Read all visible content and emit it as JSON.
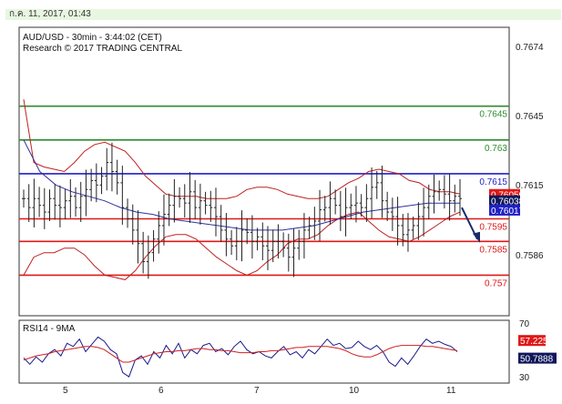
{
  "header": {
    "date": "ก.ค. 11, 2017, 01:43"
  },
  "main_panel": {
    "title": "AUD/USD - 30min - 3:44:02 (CET)",
    "subtitle": "Research © 2017 TRADING CENTRAL",
    "axis_labels": [
      "0.7674",
      "0.7645",
      "0.7615",
      "0.7586"
    ]
  },
  "rsi_panel": {
    "title": "RSI14 - 9MA",
    "axis_labels": [
      "70",
      "30"
    ],
    "rsi_badge": "57.225",
    "ma_badge": "50.7888"
  },
  "x_axis": {
    "labels": [
      "5",
      "6",
      "7",
      "10",
      "11"
    ]
  },
  "colors": {
    "green_level": "#2e8b2e",
    "red_level": "#e01818",
    "blue_level": "#2020c8",
    "bollinger": "#c02020",
    "moving_average": "#3030a0",
    "price": "#222222",
    "rsi_line": "#1a1a8c",
    "rsi_ma": "#d02020",
    "badge_red": "#e01818",
    "badge_navy": "#10185a"
  },
  "chart_data": [
    {
      "type": "candlestick",
      "title": "AUD/USD - 30min - 3:44:02 (CET)",
      "ylim": [
        0.7552,
        0.768
      ],
      "y_ticks": [
        0.7674,
        0.7645,
        0.7615,
        0.7586
      ],
      "x_labels": [
        "5",
        "6",
        "7",
        "10",
        "11"
      ],
      "levels": [
        {
          "label": "0.7645",
          "value": 0.7645,
          "color": "green"
        },
        {
          "label": "0.763",
          "value": 0.763,
          "color": "green"
        },
        {
          "label": "0.7615",
          "value": 0.7615,
          "color": "blue"
        },
        {
          "label": "0.7595",
          "value": 0.7595,
          "color": "red"
        },
        {
          "label": "0.7585",
          "value": 0.7585,
          "color": "red"
        },
        {
          "label": "0.757",
          "value": 0.757,
          "color": "red"
        }
      ],
      "price_badges": [
        {
          "label": "0.76050",
          "value": 0.7605,
          "color": "red"
        },
        {
          "label": "0.76038",
          "value": 0.76038,
          "color": "navy"
        },
        {
          "label": "0.76017",
          "value": 0.76017,
          "color": "blue"
        }
      ],
      "close": [
        0.7604,
        0.76,
        0.7604,
        0.7601,
        0.7598,
        0.7604,
        0.7601,
        0.76,
        0.7603,
        0.7605,
        0.76,
        0.7605,
        0.7608,
        0.7612,
        0.761,
        0.7614,
        0.762,
        0.7616,
        0.7611,
        0.76,
        0.7595,
        0.759,
        0.7584,
        0.7576,
        0.758,
        0.7586,
        0.7592,
        0.7597,
        0.7601,
        0.7605,
        0.7604,
        0.7602,
        0.7607,
        0.76,
        0.7603,
        0.7601,
        0.76,
        0.7596,
        0.759,
        0.7586,
        0.7583,
        0.7585,
        0.759,
        0.7589,
        0.7585,
        0.7587,
        0.7583,
        0.7581,
        0.7585,
        0.7585,
        0.7582,
        0.7578,
        0.7582,
        0.7585,
        0.759,
        0.7592,
        0.7594,
        0.7599,
        0.76,
        0.7604,
        0.7601,
        0.7596,
        0.76,
        0.7601,
        0.7602,
        0.76,
        0.7604,
        0.7609,
        0.7611,
        0.7603,
        0.7598,
        0.7596,
        0.7592,
        0.7588,
        0.759,
        0.7592,
        0.7596,
        0.76,
        0.7605,
        0.7607,
        0.7608,
        0.7606,
        0.7603,
        0.7605,
        0.7604
      ],
      "bollinger": {
        "upper": [
          0.7648,
          0.762,
          0.7618,
          0.7617,
          0.7616,
          0.762,
          0.7625,
          0.7628,
          0.7629,
          0.7627,
          0.7625,
          0.762,
          0.7614,
          0.761,
          0.7606,
          0.7605,
          0.7605,
          0.7605,
          0.7604,
          0.7604,
          0.7604,
          0.7605,
          0.7608,
          0.7609,
          0.7609,
          0.7608,
          0.7606,
          0.7605,
          0.7604,
          0.7604,
          0.7605,
          0.7608,
          0.7611,
          0.7613,
          0.7616,
          0.7617,
          0.7616,
          0.7615,
          0.7612,
          0.7611,
          0.7608,
          0.7607,
          0.7607,
          0.7606
        ],
        "lower": [
          0.757,
          0.7578,
          0.758,
          0.758,
          0.7582,
          0.7582,
          0.7579,
          0.7574,
          0.757,
          0.7569,
          0.7568,
          0.7572,
          0.7578,
          0.7583,
          0.7587,
          0.7588,
          0.7588,
          0.7586,
          0.7582,
          0.7578,
          0.7575,
          0.7572,
          0.757,
          0.7572,
          0.7576,
          0.7579,
          0.7584,
          0.7586,
          0.7586,
          0.7588,
          0.7592,
          0.7595,
          0.7597,
          0.7598,
          0.7594,
          0.759,
          0.7587,
          0.7586,
          0.7585,
          0.7587,
          0.759,
          0.7593,
          0.7596,
          0.7598
        ]
      },
      "moving_average": [
        0.763,
        0.7616,
        0.761,
        0.7607,
        0.7605,
        0.7603,
        0.76,
        0.7598,
        0.7597,
        0.7595,
        0.7594,
        0.7593,
        0.7592,
        0.7591,
        0.759,
        0.759,
        0.759,
        0.7591,
        0.7592,
        0.7594,
        0.7596,
        0.7598,
        0.7599,
        0.76,
        0.7601,
        0.7602,
        0.7602,
        0.7602
      ],
      "forecast": {
        "from": 0.76,
        "to": 0.7586
      }
    },
    {
      "type": "line",
      "title": "RSI14 - 9MA",
      "ylim": [
        20,
        80
      ],
      "y_ticks": [
        70,
        30
      ],
      "series": [
        {
          "name": "RSI14",
          "values": [
            44,
            38,
            45,
            40,
            48,
            52,
            46,
            58,
            55,
            62,
            50,
            57,
            64,
            60,
            52,
            48,
            30,
            26,
            42,
            46,
            38,
            50,
            44,
            56,
            48,
            58,
            44,
            52,
            48,
            56,
            58,
            50,
            53,
            47,
            55,
            60,
            52,
            48,
            50,
            46,
            44,
            50,
            55,
            47,
            50,
            44,
            52,
            48,
            55,
            62,
            56,
            58,
            53,
            54,
            60,
            55,
            52,
            56,
            50,
            40,
            36,
            44,
            38,
            46,
            55,
            62,
            58,
            60,
            57,
            55,
            50
          ]
        },
        {
          "name": "9MA",
          "values": [
            42,
            44,
            46,
            47,
            48,
            50,
            51,
            52,
            53,
            54,
            55,
            55,
            54,
            52,
            48,
            44,
            40,
            40,
            42,
            44,
            46,
            48,
            49,
            50,
            50,
            51,
            51,
            52,
            53,
            53,
            52,
            52,
            51,
            51,
            50,
            49,
            49,
            49,
            50,
            50,
            51,
            51,
            52,
            53,
            54,
            54,
            55,
            55,
            55,
            55,
            54,
            53,
            51,
            48,
            46,
            45,
            45,
            47,
            50,
            53,
            55,
            56,
            56,
            56,
            56,
            55,
            55,
            54,
            53,
            52,
            51
          ]
        }
      ],
      "badges": [
        {
          "label": "57.225",
          "value": 57.225
        },
        {
          "label": "50.7888",
          "value": 50.7888
        }
      ]
    }
  ]
}
